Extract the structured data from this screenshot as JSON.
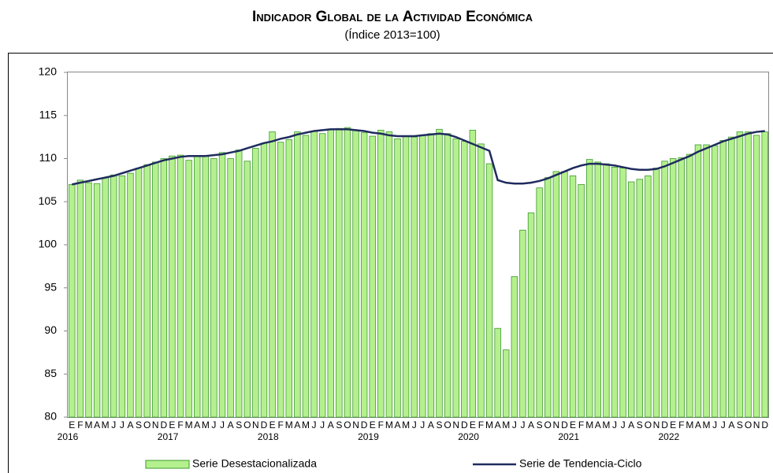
{
  "chart_data": {
    "type": "bar",
    "title": "Indicador Global de la Actividad Económica",
    "subtitle": "(Índice 2013=100)",
    "categories": [
      "E",
      "F",
      "M",
      "A",
      "M",
      "J",
      "J",
      "A",
      "S",
      "O",
      "N",
      "D",
      "E",
      "F",
      "M",
      "A",
      "M",
      "J",
      "J",
      "A",
      "S",
      "O",
      "N",
      "D",
      "E",
      "F",
      "M",
      "A",
      "M",
      "J",
      "J",
      "A",
      "S",
      "O",
      "N",
      "D",
      "E",
      "F",
      "M",
      "A",
      "M",
      "J",
      "J",
      "A",
      "S",
      "O",
      "N",
      "D",
      "E",
      "F",
      "M",
      "A",
      "M",
      "J",
      "J",
      "A",
      "S",
      "O",
      "N",
      "D",
      "E",
      "F",
      "M",
      "A",
      "M",
      "J",
      "J",
      "A",
      "S",
      "O",
      "N",
      "D",
      "E",
      "F",
      "M",
      "A",
      "M",
      "J",
      "J",
      "A",
      "S",
      "O",
      "N",
      "D"
    ],
    "years": [
      "2016",
      "2017",
      "2018",
      "2019",
      "2020",
      "2021",
      "2022"
    ],
    "series": [
      {
        "name": "Serie Desestacionalizada",
        "type": "bar",
        "color": "#b5f08e",
        "edge_color": "#3c9a2e",
        "values": [
          107.0,
          107.5,
          107.2,
          107.1,
          107.8,
          108.1,
          108.0,
          108.3,
          108.9,
          109.3,
          109.6,
          110.0,
          110.3,
          110.4,
          109.8,
          110.3,
          110.3,
          110.0,
          110.7,
          110.0,
          111.0,
          109.7,
          111.2,
          111.8,
          113.1,
          111.9,
          112.2,
          113.1,
          112.7,
          113.2,
          112.9,
          113.4,
          113.5,
          113.6,
          113.3,
          113.0,
          112.6,
          113.3,
          113.1,
          112.3,
          112.6,
          112.5,
          112.7,
          112.9,
          113.4,
          112.9,
          112.3,
          112.0,
          113.3,
          111.7,
          109.4,
          90.3,
          87.8,
          96.3,
          101.7,
          103.7,
          106.6,
          107.8,
          108.5,
          108.5,
          108.0,
          107.0,
          109.9,
          109.6,
          109.4,
          109.0,
          108.9,
          107.3,
          107.6,
          108.0,
          108.9,
          109.7,
          110.0,
          110.1,
          110.5,
          111.6,
          111.6,
          111.5,
          112.1,
          112.5,
          113.1,
          113.1,
          112.7,
          113.1
        ]
      },
      {
        "name": "Serie de Tendencia-Ciclo",
        "type": "line",
        "color": "#1f2b5e",
        "values": [
          107.0,
          107.2,
          107.4,
          107.6,
          107.8,
          108.0,
          108.3,
          108.6,
          108.9,
          109.2,
          109.5,
          109.8,
          110.0,
          110.2,
          110.3,
          110.3,
          110.3,
          110.4,
          110.5,
          110.7,
          110.9,
          111.2,
          111.5,
          111.8,
          112.0,
          112.3,
          112.5,
          112.8,
          113.0,
          113.2,
          113.3,
          113.4,
          113.4,
          113.4,
          113.3,
          113.2,
          113.0,
          112.9,
          112.7,
          112.6,
          112.6,
          112.6,
          112.7,
          112.8,
          112.9,
          112.8,
          112.5,
          112.1,
          111.7,
          111.3,
          110.9,
          107.5,
          107.2,
          107.1,
          107.1,
          107.2,
          107.4,
          107.7,
          108.1,
          108.5,
          108.9,
          109.2,
          109.4,
          109.4,
          109.3,
          109.2,
          109.0,
          108.8,
          108.7,
          108.7,
          108.8,
          109.1,
          109.5,
          109.9,
          110.3,
          110.8,
          111.2,
          111.6,
          112.0,
          112.3,
          112.6,
          112.9,
          113.1,
          113.2
        ]
      }
    ],
    "ylim": [
      80,
      120
    ],
    "yticks": [
      80,
      85,
      90,
      95,
      100,
      105,
      110,
      115,
      120
    ],
    "grid": false
  }
}
